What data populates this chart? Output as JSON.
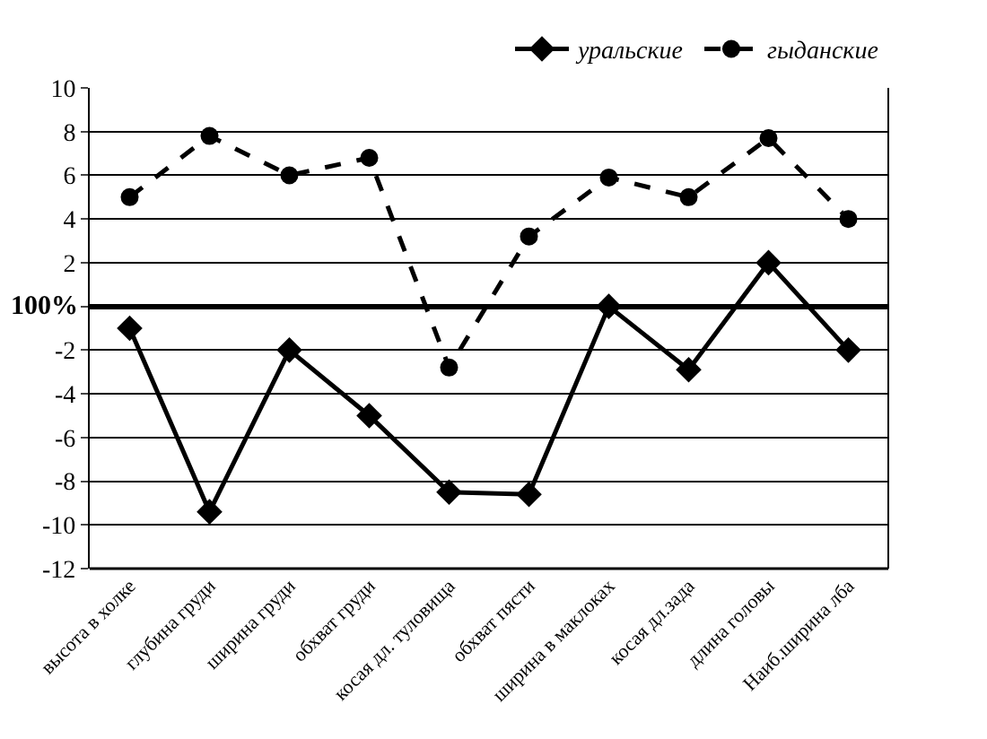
{
  "chart_data": {
    "type": "line",
    "categories": [
      "высота в холке",
      "глубина груди",
      "ширина груди",
      "обхват груди",
      "косая дл. туловища",
      "обхват пясти",
      "ширина в маклоках",
      "косая дл.зада",
      "длина головы",
      "Наиб.ширина лба"
    ],
    "series": [
      {
        "name": "уральские",
        "color": "#000000",
        "marker": "diamond",
        "line_style": "solid",
        "values": [
          -1,
          -9.4,
          -2,
          -5,
          -8.5,
          -8.6,
          0,
          -2.9,
          2,
          -2
        ]
      },
      {
        "name": "гыданские",
        "color": "#000000",
        "marker": "circle",
        "line_style": "dashed",
        "values": [
          5,
          7.8,
          6,
          6.8,
          -2.8,
          3.2,
          5.9,
          5,
          7.7,
          4
        ]
      }
    ],
    "ylim": [
      -12,
      10
    ],
    "yticks": [
      -12,
      -10,
      -8,
      -6,
      -4,
      -2,
      {
        "value": 0,
        "label": null
      },
      2,
      4,
      6,
      8,
      10
    ],
    "annotations": [
      "100%"
    ],
    "grid": "y",
    "legend": "top right"
  }
}
